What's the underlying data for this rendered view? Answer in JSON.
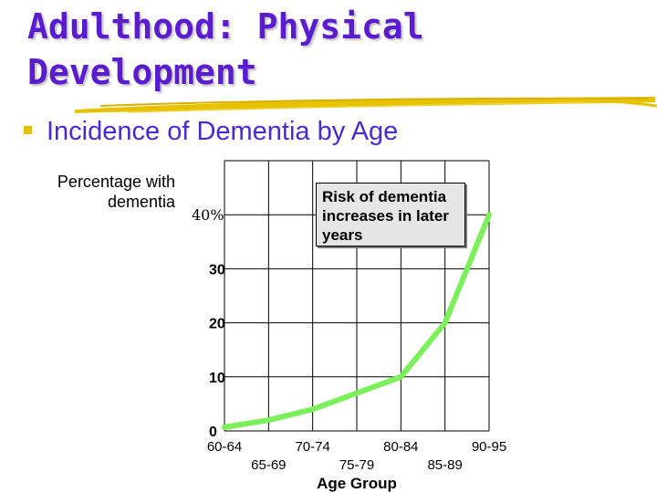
{
  "slide": {
    "title_line1": "Adulthood: Physical",
    "title_line2": "Development",
    "bullet": "Incidence of Dementia by Age",
    "colors": {
      "title": "#5b1ccf",
      "bullet": "#4a2ad0",
      "accent": "#e0c000",
      "line": "#7cf05a"
    }
  },
  "chart_data": {
    "type": "line",
    "ylabel": "Percentage with dementia",
    "xlabel": "Age Group",
    "categories": [
      "60-64",
      "65-69",
      "70-74",
      "75-79",
      "80-84",
      "85-89",
      "90-95"
    ],
    "values": [
      0.7,
      2.0,
      4.0,
      7.0,
      10.0,
      20.0,
      40.0
    ],
    "ytick_labels": [
      "0",
      "10",
      "20",
      "30",
      "40%"
    ],
    "yticks": [
      0,
      10,
      20,
      30,
      40
    ],
    "ylim": [
      0,
      50
    ],
    "grid": true,
    "annotation": "Risk of dementia increases in later years"
  }
}
